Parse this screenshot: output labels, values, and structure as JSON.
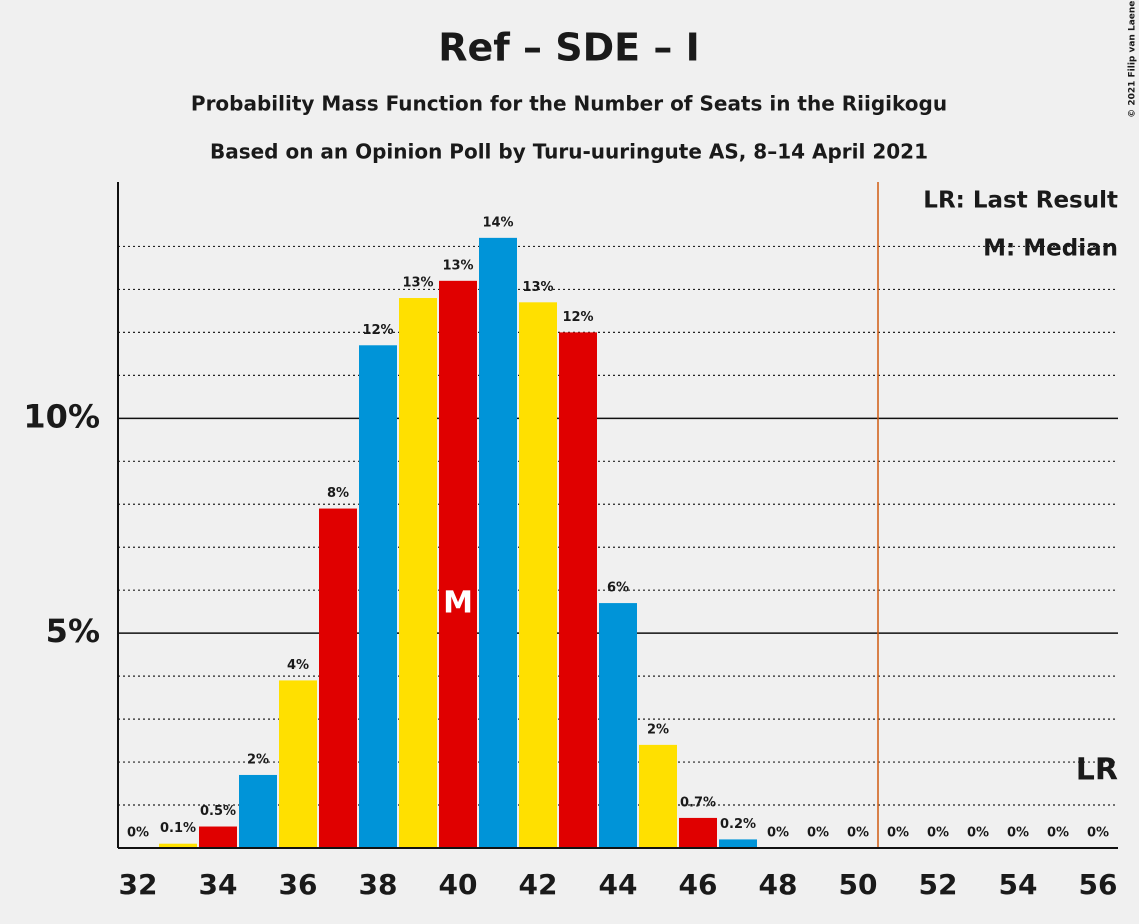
{
  "chart_data": {
    "type": "bar",
    "title": "Ref – SDE – I",
    "subtitle": "Probability Mass Function for the Number of Seats in the Riigikogu",
    "subtitle2": "Based on an Opinion Poll by Turu-uuringute AS, 8–14 April 2021",
    "copyright": "© 2021 Filip van Laenen",
    "x": [
      32,
      33,
      34,
      35,
      36,
      37,
      38,
      39,
      40,
      41,
      42,
      43,
      44,
      45,
      46,
      47,
      48,
      49,
      50,
      51,
      52,
      53,
      54,
      55,
      56
    ],
    "values": [
      0,
      0.1,
      0.5,
      1.7,
      3.9,
      7.9,
      11.7,
      12.8,
      13.2,
      14.2,
      12.7,
      12.0,
      5.7,
      2.4,
      0.7,
      0.2,
      0,
      0,
      0,
      0,
      0,
      0,
      0,
      0,
      0
    ],
    "value_labels": [
      "0%",
      "0.1%",
      "0.5%",
      "2%",
      "4%",
      "8%",
      "12%",
      "13%",
      "13%",
      "14%",
      "13%",
      "12%",
      "6%",
      "2%",
      "0.7%",
      "0.2%",
      "0%",
      "0%",
      "0%",
      "0%",
      "0%",
      "0%",
      "0%",
      "0%",
      "0%"
    ],
    "colors": [
      "#0094d8",
      "#ffe000",
      "#e00000",
      "#0094d8",
      "#ffe000",
      "#e00000",
      "#0094d8",
      "#ffe000",
      "#e00000",
      "#0094d8",
      "#ffe000",
      "#e00000",
      "#0094d8",
      "#ffe000",
      "#e00000",
      "#0094d8",
      "#ffe000",
      "#e00000",
      "#0094d8",
      "#ffe000",
      "#e00000",
      "#0094d8",
      "#ffe000",
      "#e00000",
      "#0094d8"
    ],
    "xlim": [
      31.5,
      56.5
    ],
    "xticks": [
      32,
      34,
      36,
      38,
      40,
      42,
      44,
      46,
      48,
      50,
      52,
      54,
      56
    ],
    "ylim": [
      0,
      15.5
    ],
    "yticks": [
      {
        "value": 5,
        "label": "5%"
      },
      {
        "value": 10,
        "label": "10%"
      }
    ],
    "minor_yticks": [
      1,
      2,
      3,
      4,
      6,
      7,
      8,
      9,
      11,
      12,
      13,
      14
    ],
    "grid": true,
    "median": 40,
    "median_label": "M",
    "last_result": 50.5,
    "last_result_label": "LR",
    "last_result_color": "#d05a10",
    "legend": [
      "LR: Last Result",
      "M: Median"
    ],
    "legend_position": "upper right"
  }
}
